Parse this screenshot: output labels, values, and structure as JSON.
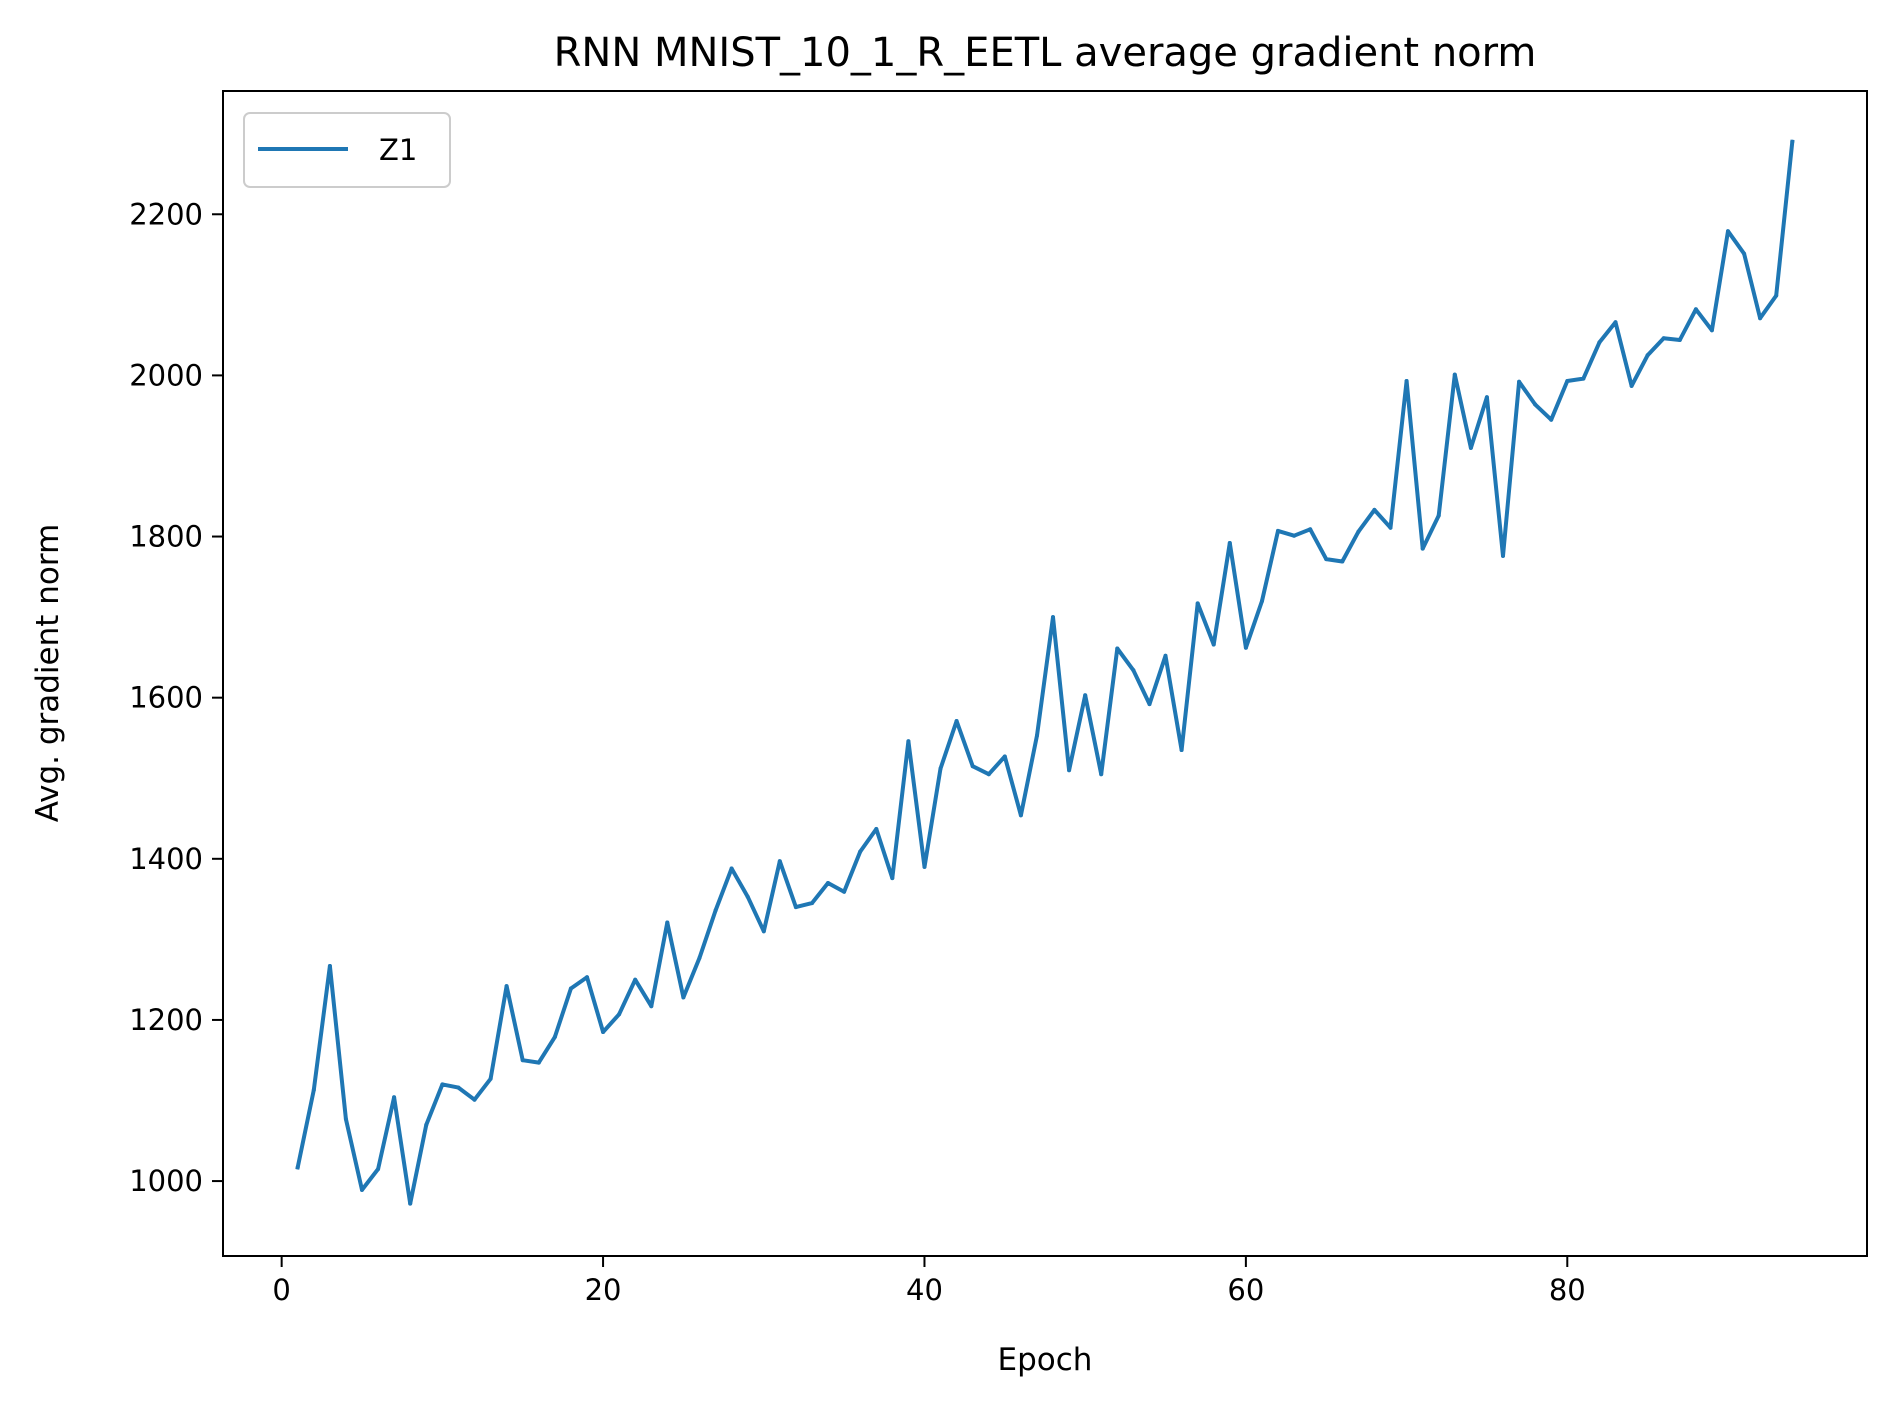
{
  "chart_data": {
    "type": "line",
    "title": "RNN MNIST_10_1_R_EETL average gradient norm",
    "xlabel": "Epoch",
    "ylabel": "Avg. gradient norm",
    "xlim": [
      -3.65,
      98.65
    ],
    "ylim": [
      907,
      2353
    ],
    "xticks": [
      0,
      20,
      40,
      60,
      80
    ],
    "yticks": [
      1000,
      1200,
      1400,
      1600,
      1800,
      2000,
      2200
    ],
    "grid": false,
    "legend_position": "top-left",
    "series": [
      {
        "name": "Z1",
        "color": "#1f77b4",
        "x": [
          1,
          2,
          3,
          4,
          5,
          6,
          7,
          8,
          9,
          10,
          11,
          12,
          13,
          14,
          15,
          16,
          17,
          18,
          19,
          20,
          21,
          22,
          23,
          24,
          25,
          26,
          27,
          28,
          29,
          30,
          31,
          32,
          33,
          34,
          35,
          36,
          37,
          38,
          39,
          40,
          41,
          42,
          43,
          44,
          45,
          46,
          47,
          48,
          49,
          50,
          51,
          52,
          53,
          54,
          55,
          56,
          57,
          58,
          59,
          60,
          61,
          62,
          63,
          64,
          65,
          66,
          67,
          68,
          69,
          70,
          71,
          72,
          73,
          74,
          75,
          76,
          77,
          78,
          79,
          80,
          81,
          82,
          83,
          84,
          85,
          86,
          87,
          88,
          89,
          90,
          91,
          92,
          93,
          94
        ],
        "values": [
          1017,
          1113,
          1267,
          1077,
          989,
          1015,
          1104,
          972,
          1070,
          1120,
          1116,
          1101,
          1127,
          1242,
          1150,
          1147,
          1179,
          1239,
          1253,
          1185,
          1207,
          1250,
          1217,
          1321,
          1228,
          1277,
          1336,
          1388,
          1353,
          1310,
          1397,
          1340,
          1345,
          1370,
          1359,
          1409,
          1437,
          1376,
          1546,
          1390,
          1512,
          1571,
          1515,
          1505,
          1527,
          1454,
          1553,
          1700,
          1510,
          1603,
          1505,
          1661,
          1634,
          1592,
          1652,
          1535,
          1717,
          1666,
          1792,
          1662,
          1720,
          1807,
          1801,
          1809,
          1772,
          1769,
          1806,
          1833,
          1811,
          1993,
          1785,
          1826,
          2001,
          1910,
          1973,
          1776,
          1992,
          1964,
          1945,
          1993,
          1996,
          2041,
          2066,
          1987,
          2025,
          2046,
          2044,
          2082,
          2056,
          2179,
          2151,
          2071,
          2099,
          2290
        ]
      }
    ]
  }
}
